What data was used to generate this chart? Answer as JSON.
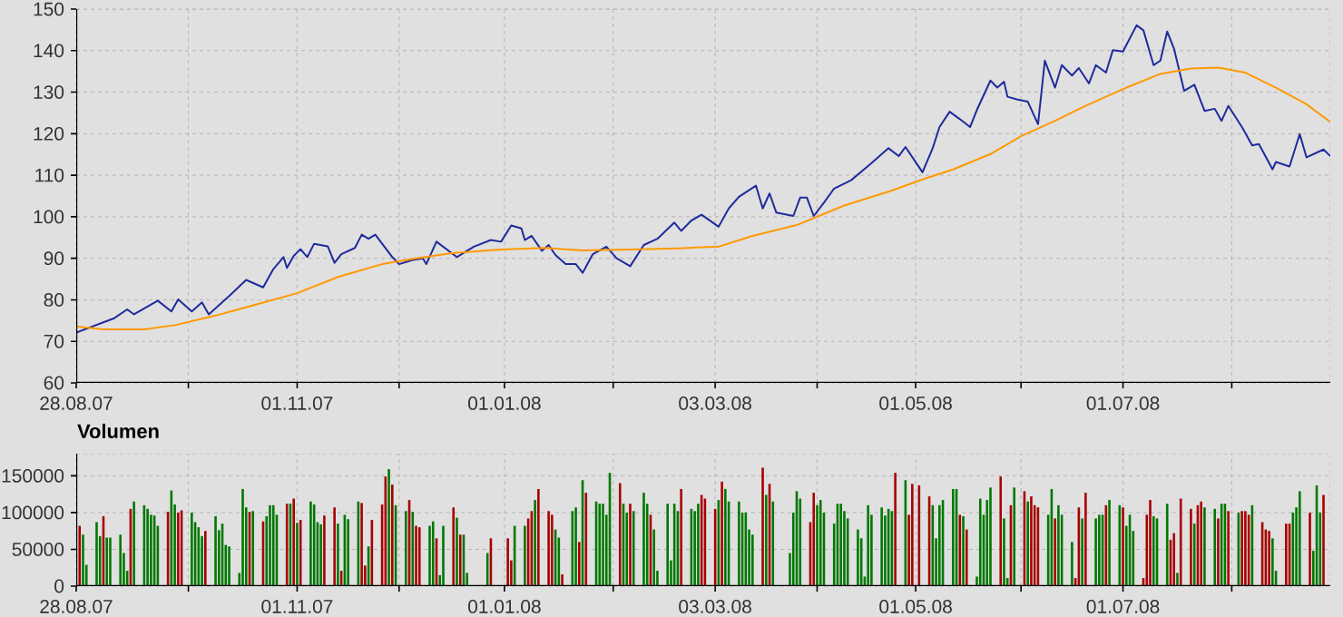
{
  "chart_data": [
    {
      "type": "line",
      "marker": "none",
      "grid": true,
      "line_style": "solid",
      "xlim": [
        "2007-08-28",
        "2008-08-31"
      ],
      "ylim": [
        60,
        150
      ],
      "xticks": [
        {
          "value": "2007-08-28",
          "label": "28.08.07"
        },
        {
          "value": "2007-09-30",
          "label": null
        },
        {
          "value": "2007-11-01",
          "label": "01.11.07"
        },
        {
          "value": "2007-12-01",
          "label": null
        },
        {
          "value": "2008-01-01",
          "label": "01.01.08"
        },
        {
          "value": "2008-02-02",
          "label": null
        },
        {
          "value": "2008-03-03",
          "label": "03.03.08"
        },
        {
          "value": "2008-04-02",
          "label": null
        },
        {
          "value": "2008-05-01",
          "label": "01.05.08"
        },
        {
          "value": "2008-06-01",
          "label": null
        },
        {
          "value": "2008-07-01",
          "label": "01.07.08"
        },
        {
          "value": "2008-08-02",
          "label": null
        }
      ],
      "yticks": [
        60,
        70,
        80,
        90,
        100,
        110,
        120,
        130,
        140,
        150
      ],
      "series": [
        {
          "color": "#1f2b9c",
          "x": [
            "2007-08-28",
            "2007-09-08",
            "2007-09-12",
            "2007-09-14",
            "2007-09-21",
            "2007-09-25",
            "2007-09-27",
            "2007-10-01",
            "2007-10-04",
            "2007-10-06",
            "2007-10-12",
            "2007-10-17",
            "2007-10-22",
            "2007-10-25",
            "2007-10-28",
            "2007-10-29",
            "2007-10-31",
            "2007-11-02",
            "2007-11-04",
            "2007-11-06",
            "2007-11-10",
            "2007-11-12",
            "2007-11-14",
            "2007-11-18",
            "2007-11-20",
            "2007-11-22",
            "2007-11-24",
            "2007-11-29",
            "2007-12-01",
            "2007-12-05",
            "2007-12-08",
            "2007-12-09",
            "2007-12-12",
            "2007-12-18",
            "2007-12-23",
            "2007-12-28",
            "2007-12-31",
            "2008-01-03",
            "2008-01-06",
            "2008-01-07",
            "2008-01-09",
            "2008-01-12",
            "2008-01-14",
            "2008-01-16",
            "2008-01-19",
            "2008-01-22",
            "2008-01-24",
            "2008-01-27",
            "2008-01-31",
            "2008-02-03",
            "2008-02-07",
            "2008-02-11",
            "2008-02-15",
            "2008-02-20",
            "2008-02-22",
            "2008-02-25",
            "2008-02-28",
            "2008-03-04",
            "2008-03-07",
            "2008-03-10",
            "2008-03-15",
            "2008-03-17",
            "2008-03-19",
            "2008-03-21",
            "2008-03-26",
            "2008-03-28",
            "2008-03-30",
            "2008-04-01",
            "2008-04-04",
            "2008-04-07",
            "2008-04-12",
            "2008-04-18",
            "2008-04-23",
            "2008-04-26",
            "2008-04-28",
            "2008-05-03",
            "2008-05-06",
            "2008-05-08",
            "2008-05-11",
            "2008-05-14",
            "2008-05-17",
            "2008-05-19",
            "2008-05-23",
            "2008-05-25",
            "2008-05-27",
            "2008-05-28",
            "2008-05-31",
            "2008-06-03",
            "2008-06-06",
            "2008-06-08",
            "2008-06-11",
            "2008-06-13",
            "2008-06-16",
            "2008-06-18",
            "2008-06-21",
            "2008-06-23",
            "2008-06-26",
            "2008-06-28",
            "2008-07-01",
            "2008-07-05",
            "2008-07-07",
            "2008-07-10",
            "2008-07-12",
            "2008-07-14",
            "2008-07-16",
            "2008-07-19",
            "2008-07-22",
            "2008-07-25",
            "2008-07-28",
            "2008-07-30",
            "2008-08-01",
            "2008-08-05",
            "2008-08-08",
            "2008-08-10",
            "2008-08-14",
            "2008-08-15",
            "2008-08-19",
            "2008-08-22",
            "2008-08-24",
            "2008-08-29",
            "2008-08-31"
          ],
          "values": [
            72.1,
            75.5,
            77.7,
            76.5,
            79.8,
            77.2,
            80.1,
            77.2,
            79.4,
            76.5,
            80.9,
            84.8,
            83.0,
            87.4,
            90.3,
            87.7,
            90.6,
            92.2,
            90.3,
            93.5,
            92.9,
            88.9,
            91.0,
            92.5,
            95.7,
            94.7,
            95.7,
            90.3,
            88.6,
            89.6,
            90.0,
            88.6,
            94.0,
            90.3,
            92.8,
            94.4,
            94.0,
            97.9,
            97.2,
            94.4,
            95.4,
            91.8,
            93.2,
            90.8,
            88.6,
            88.6,
            86.5,
            91.0,
            92.8,
            90.0,
            88.1,
            93.2,
            94.7,
            98.6,
            96.6,
            99.1,
            100.5,
            97.6,
            102.0,
            104.8,
            107.5,
            102.0,
            105.6,
            101.0,
            100.2,
            104.6,
            104.6,
            100.2,
            103.4,
            106.8,
            108.8,
            112.9,
            116.5,
            114.6,
            116.8,
            110.7,
            116.5,
            121.6,
            125.3,
            123.5,
            121.6,
            125.7,
            132.8,
            131.1,
            132.5,
            128.9,
            128.2,
            127.7,
            122.3,
            137.6,
            131.1,
            136.5,
            134.0,
            135.8,
            132.1,
            136.5,
            134.7,
            140.1,
            139.8,
            146.1,
            144.9,
            136.5,
            137.6,
            144.6,
            140.5,
            130.3,
            131.8,
            125.5,
            126.0,
            123.1,
            126.7,
            121.6,
            117.2,
            117.5,
            111.4,
            113.2,
            112.1,
            119.9,
            114.3,
            116.2,
            114.6
          ]
        },
        {
          "color": "#ff9900",
          "x": [
            "2007-08-28",
            "2007-09-05",
            "2007-09-17",
            "2007-09-26",
            "2007-10-08",
            "2007-10-21",
            "2007-11-01",
            "2007-11-13",
            "2007-11-26",
            "2007-12-06",
            "2007-12-17",
            "2007-12-31",
            "2008-01-13",
            "2008-01-24",
            "2008-02-07",
            "2008-02-21",
            "2008-03-04",
            "2008-03-14",
            "2008-03-27",
            "2008-04-10",
            "2008-04-24",
            "2008-05-03",
            "2008-05-12",
            "2008-05-23",
            "2008-06-01",
            "2008-06-11",
            "2008-06-20",
            "2008-07-02",
            "2008-07-12",
            "2008-07-21",
            "2008-07-29",
            "2008-08-06",
            "2008-08-15",
            "2008-08-24",
            "2008-08-31"
          ],
          "values": [
            73.6,
            72.9,
            72.9,
            73.9,
            76.2,
            79.1,
            81.6,
            85.5,
            88.6,
            90.0,
            91.3,
            92.1,
            92.5,
            91.9,
            92.1,
            92.4,
            92.8,
            95.4,
            98.0,
            102.7,
            106.3,
            109.0,
            111.4,
            115.1,
            119.4,
            123.1,
            126.7,
            131.1,
            134.4,
            135.7,
            135.9,
            134.7,
            131.1,
            127.1,
            122.8
          ]
        }
      ]
    },
    {
      "type": "bar",
      "title": "Volumen",
      "grid": true,
      "xlim": [
        "2007-08-28",
        "2008-08-31"
      ],
      "ylim": [
        0,
        180000
      ],
      "xticks": [
        {
          "value": "2007-08-28",
          "label": "28.08.07"
        },
        {
          "value": "2007-09-30",
          "label": null
        },
        {
          "value": "2007-11-01",
          "label": "01.11.07"
        },
        {
          "value": "2007-12-01",
          "label": null
        },
        {
          "value": "2008-01-01",
          "label": "01.01.08"
        },
        {
          "value": "2008-02-02",
          "label": null
        },
        {
          "value": "2008-03-03",
          "label": "03.03.08"
        },
        {
          "value": "2008-04-02",
          "label": null
        },
        {
          "value": "2008-05-01",
          "label": "01.05.08"
        },
        {
          "value": "2008-06-01",
          "label": null
        },
        {
          "value": "2008-07-01",
          "label": "01.07.08"
        },
        {
          "value": "2008-08-02",
          "label": null
        }
      ],
      "yticks": [
        0,
        50000,
        100000,
        150000
      ],
      "x": [
        "2007-08-29",
        "2007-08-30",
        "2007-08-31",
        "2007-09-03",
        "2007-09-04",
        "2007-09-05",
        "2007-09-06",
        "2007-09-07",
        "2007-09-10",
        "2007-09-11",
        "2007-09-12",
        "2007-09-13",
        "2007-09-14",
        "2007-09-17",
        "2007-09-18",
        "2007-09-19",
        "2007-09-20",
        "2007-09-21",
        "2007-09-24",
        "2007-09-25",
        "2007-09-26",
        "2007-09-27",
        "2007-09-28",
        "2007-10-01",
        "2007-10-02",
        "2007-10-03",
        "2007-10-04",
        "2007-10-05",
        "2007-10-08",
        "2007-10-09",
        "2007-10-10",
        "2007-10-11",
        "2007-10-12",
        "2007-10-15",
        "2007-10-16",
        "2007-10-17",
        "2007-10-18",
        "2007-10-19",
        "2007-10-22",
        "2007-10-23",
        "2007-10-24",
        "2007-10-25",
        "2007-10-26",
        "2007-10-29",
        "2007-10-30",
        "2007-10-31",
        "2007-11-01",
        "2007-11-02",
        "2007-11-05",
        "2007-11-06",
        "2007-11-07",
        "2007-11-08",
        "2007-11-09",
        "2007-11-12",
        "2007-11-13",
        "2007-11-14",
        "2007-11-15",
        "2007-11-16",
        "2007-11-19",
        "2007-11-20",
        "2007-11-21",
        "2007-11-22",
        "2007-11-23",
        "2007-11-26",
        "2007-11-27",
        "2007-11-28",
        "2007-11-29",
        "2007-11-30",
        "2007-12-03",
        "2007-12-04",
        "2007-12-05",
        "2007-12-06",
        "2007-12-07",
        "2007-12-10",
        "2007-12-11",
        "2007-12-12",
        "2007-12-13",
        "2007-12-14",
        "2007-12-17",
        "2007-12-18",
        "2007-12-19",
        "2007-12-20",
        "2007-12-21",
        "2007-12-27",
        "2007-12-28",
        "2008-01-02",
        "2008-01-03",
        "2008-01-04",
        "2008-01-07",
        "2008-01-08",
        "2008-01-09",
        "2008-01-10",
        "2008-01-11",
        "2008-01-14",
        "2008-01-15",
        "2008-01-16",
        "2008-01-17",
        "2008-01-18",
        "2008-01-21",
        "2008-01-22",
        "2008-01-23",
        "2008-01-24",
        "2008-01-25",
        "2008-01-28",
        "2008-01-29",
        "2008-01-30",
        "2008-01-31",
        "2008-02-01",
        "2008-02-04",
        "2008-02-05",
        "2008-02-06",
        "2008-02-07",
        "2008-02-08",
        "2008-02-11",
        "2008-02-12",
        "2008-02-13",
        "2008-02-14",
        "2008-02-15",
        "2008-02-18",
        "2008-02-19",
        "2008-02-20",
        "2008-02-21",
        "2008-02-22",
        "2008-02-25",
        "2008-02-26",
        "2008-02-27",
        "2008-02-28",
        "2008-02-29",
        "2008-03-03",
        "2008-03-04",
        "2008-03-05",
        "2008-03-06",
        "2008-03-07",
        "2008-03-10",
        "2008-03-11",
        "2008-03-12",
        "2008-03-13",
        "2008-03-14",
        "2008-03-17",
        "2008-03-18",
        "2008-03-19",
        "2008-03-20",
        "2008-03-25",
        "2008-03-26",
        "2008-03-27",
        "2008-03-28",
        "2008-03-31",
        "2008-04-01",
        "2008-04-02",
        "2008-04-03",
        "2008-04-04",
        "2008-04-07",
        "2008-04-08",
        "2008-04-09",
        "2008-04-10",
        "2008-04-11",
        "2008-04-14",
        "2008-04-15",
        "2008-04-16",
        "2008-04-17",
        "2008-04-18",
        "2008-04-21",
        "2008-04-22",
        "2008-04-23",
        "2008-04-24",
        "2008-04-25",
        "2008-04-28",
        "2008-04-29",
        "2008-04-30",
        "2008-05-02",
        "2008-05-05",
        "2008-05-06",
        "2008-05-07",
        "2008-05-08",
        "2008-05-09",
        "2008-05-12",
        "2008-05-13",
        "2008-05-14",
        "2008-05-15",
        "2008-05-16",
        "2008-05-19",
        "2008-05-20",
        "2008-05-21",
        "2008-05-22",
        "2008-05-23",
        "2008-05-26",
        "2008-05-27",
        "2008-05-28",
        "2008-05-29",
        "2008-05-30",
        "2008-06-02",
        "2008-06-03",
        "2008-06-04",
        "2008-06-05",
        "2008-06-06",
        "2008-06-09",
        "2008-06-10",
        "2008-06-11",
        "2008-06-12",
        "2008-06-13",
        "2008-06-16",
        "2008-06-17",
        "2008-06-18",
        "2008-06-19",
        "2008-06-20",
        "2008-06-23",
        "2008-06-24",
        "2008-06-25",
        "2008-06-26",
        "2008-06-27",
        "2008-06-30",
        "2008-07-01",
        "2008-07-02",
        "2008-07-03",
        "2008-07-04",
        "2008-07-07",
        "2008-07-08",
        "2008-07-09",
        "2008-07-10",
        "2008-07-11",
        "2008-07-14",
        "2008-07-15",
        "2008-07-16",
        "2008-07-17",
        "2008-07-18",
        "2008-07-21",
        "2008-07-22",
        "2008-07-23",
        "2008-07-24",
        "2008-07-25",
        "2008-07-28",
        "2008-07-29",
        "2008-07-30",
        "2008-07-31",
        "2008-08-01",
        "2008-08-04",
        "2008-08-05",
        "2008-08-06",
        "2008-08-07",
        "2008-08-08",
        "2008-08-11",
        "2008-08-12",
        "2008-08-13",
        "2008-08-14",
        "2008-08-15",
        "2008-08-18",
        "2008-08-19",
        "2008-08-20",
        "2008-08-21",
        "2008-08-22",
        "2008-08-25",
        "2008-08-26",
        "2008-08-27",
        "2008-08-28",
        "2008-08-29"
      ],
      "values": [
        82000,
        70000,
        29000,
        87000,
        68000,
        95000,
        66000,
        66000,
        70000,
        45000,
        21000,
        105000,
        115000,
        110000,
        105000,
        97000,
        96000,
        82000,
        101000,
        130000,
        111000,
        100000,
        103000,
        100000,
        87000,
        80000,
        68000,
        75000,
        95000,
        76000,
        85000,
        56000,
        54000,
        18000,
        132000,
        107000,
        101000,
        102000,
        88000,
        95000,
        110000,
        110000,
        97000,
        112000,
        112000,
        119000,
        86000,
        90000,
        115000,
        111000,
        87000,
        84000,
        96000,
        107000,
        85000,
        21000,
        97000,
        91000,
        115000,
        113000,
        28000,
        54000,
        90000,
        111000,
        149000,
        159000,
        138000,
        110000,
        102000,
        117000,
        101000,
        82000,
        80000,
        82000,
        88000,
        65000,
        15000,
        82000,
        107000,
        93000,
        70000,
        70000,
        18000,
        45000,
        65000,
        65000,
        35000,
        82000,
        82000,
        92000,
        102000,
        117000,
        132000,
        102000,
        97000,
        77000,
        66000,
        16000,
        102000,
        107000,
        60000,
        144000,
        127000,
        115000,
        112000,
        112000,
        97000,
        154000,
        140000,
        112000,
        100000,
        112000,
        102000,
        127000,
        112000,
        97000,
        77000,
        21000,
        112000,
        35000,
        112000,
        102000,
        132000,
        105000,
        102000,
        112000,
        124000,
        119000,
        105000,
        117000,
        142000,
        132000,
        115000,
        115000,
        100000,
        100000,
        77000,
        70000,
        161000,
        124000,
        139000,
        115000,
        45000,
        100000,
        129000,
        119000,
        87000,
        127000,
        110000,
        117000,
        100000,
        85000,
        112000,
        112000,
        102000,
        92000,
        77000,
        65000,
        13000,
        110000,
        97000,
        107000,
        96000,
        105000,
        102000,
        154000,
        144000,
        97000,
        139000,
        137000,
        122000,
        110000,
        65000,
        110000,
        117000,
        132000,
        132000,
        97000,
        95000,
        77000,
        13000,
        119000,
        97000,
        117000,
        134000,
        149000,
        92000,
        11000,
        110000,
        134000,
        129000,
        115000,
        122000,
        110000,
        107000,
        97000,
        132000,
        92000,
        110000,
        97000,
        60000,
        11000,
        107000,
        92000,
        127000,
        92000,
        97000,
        97000,
        110000,
        117000,
        110000,
        107000,
        82000,
        97000,
        75000,
        11000,
        97000,
        117000,
        95000,
        92000,
        112000,
        63000,
        72000,
        18000,
        119000,
        105000,
        85000,
        110000,
        115000,
        107000,
        105000,
        92000,
        112000,
        112000,
        102000,
        100000,
        102000,
        102000,
        97000,
        110000,
        87000,
        77000,
        75000,
        65000,
        21000,
        85000,
        85000,
        100000,
        107000,
        129000,
        100000,
        48000,
        137000,
        100000,
        124000
      ],
      "colors": [
        "#a80000",
        "#007800",
        "#007800",
        "#007800",
        "#007800",
        "#a80000",
        "#007800",
        "#007800",
        "#007800",
        "#007800",
        "#007800",
        "#a80000",
        "#007800",
        "#007800",
        "#007800",
        "#007800",
        "#007800",
        "#007800",
        "#a80000",
        "#007800",
        "#007800",
        "#a80000",
        "#a80000",
        "#007800",
        "#007800",
        "#007800",
        "#007800",
        "#a80000",
        "#007800",
        "#007800",
        "#007800",
        "#007800",
        "#007800",
        "#007800",
        "#007800",
        "#007800",
        "#a80000",
        "#007800",
        "#a80000",
        "#007800",
        "#007800",
        "#007800",
        "#007800",
        "#a80000",
        "#007800",
        "#a80000",
        "#007800",
        "#a80000",
        "#007800",
        "#007800",
        "#007800",
        "#007800",
        "#a80000",
        "#a80000",
        "#007800",
        "#a80000",
        "#007800",
        "#007800",
        "#007800",
        "#a80000",
        "#a80000",
        "#007800",
        "#a80000",
        "#a80000",
        "#a80000",
        "#007800",
        "#a80000",
        "#007800",
        "#007800",
        "#a80000",
        "#007800",
        "#a80000",
        "#a80000",
        "#007800",
        "#007800",
        "#a80000",
        "#007800",
        "#007800",
        "#a80000",
        "#007800",
        "#a80000",
        "#007800",
        "#007800",
        "#007800",
        "#a80000",
        "#a80000",
        "#a80000",
        "#007800",
        "#007800",
        "#a80000",
        "#a80000",
        "#007800",
        "#a80000",
        "#a80000",
        "#a80000",
        "#007800",
        "#007800",
        "#a80000",
        "#007800",
        "#007800",
        "#a80000",
        "#007800",
        "#a80000",
        "#007800",
        "#007800",
        "#007800",
        "#007800",
        "#007800",
        "#a80000",
        "#007800",
        "#007800",
        "#a80000",
        "#007800",
        "#007800",
        "#007800",
        "#a80000",
        "#007800",
        "#007800",
        "#007800",
        "#007800",
        "#007800",
        "#007800",
        "#a80000",
        "#007800",
        "#007800",
        "#007800",
        "#a80000",
        "#a80000",
        "#a80000",
        "#007800",
        "#a80000",
        "#007800",
        "#007800",
        "#007800",
        "#007800",
        "#007800",
        "#007800",
        "#007800",
        "#a80000",
        "#007800",
        "#a80000",
        "#007800",
        "#007800",
        "#007800",
        "#007800",
        "#007800",
        "#a80000",
        "#a80000",
        "#007800",
        "#007800",
        "#007800",
        "#007800",
        "#007800",
        "#007800",
        "#007800",
        "#007800",
        "#007800",
        "#007800",
        "#007800",
        "#007800",
        "#007800",
        "#007800",
        "#007800",
        "#007800",
        "#007800",
        "#a80000",
        "#007800",
        "#a80000",
        "#a80000",
        "#a80000",
        "#a80000",
        "#007800",
        "#007800",
        "#007800",
        "#007800",
        "#007800",
        "#007800",
        "#a80000",
        "#007800",
        "#a80000",
        "#007800",
        "#007800",
        "#007800",
        "#007800",
        "#007800",
        "#a80000",
        "#007800",
        "#007800",
        "#a80000",
        "#007800",
        "#a80000",
        "#007800",
        "#a80000",
        "#a80000",
        "#a80000",
        "#007800",
        "#007800",
        "#a80000",
        "#007800",
        "#007800",
        "#007800",
        "#a80000",
        "#a80000",
        "#007800",
        "#a80000",
        "#007800",
        "#007800",
        "#007800",
        "#a80000",
        "#007800",
        "#007800",
        "#a80000",
        "#007800",
        "#007800",
        "#007800",
        "#a80000",
        "#a80000",
        "#a80000",
        "#007800",
        "#007800",
        "#007800",
        "#a80000",
        "#a80000",
        "#007800",
        "#a80000",
        "#a80000",
        "#007800",
        "#a80000",
        "#a80000",
        "#007800",
        "#007800",
        "#a80000",
        "#007800",
        "#007800",
        "#a80000",
        "#007800",
        "#a80000",
        "#a80000",
        "#a80000",
        "#007800",
        "#a80000",
        "#a80000",
        "#a80000",
        "#007800",
        "#007800",
        "#a80000",
        "#a80000",
        "#007800",
        "#007800",
        "#007800",
        "#a80000",
        "#007800",
        "#007800",
        "#007800",
        "#a80000"
      ]
    }
  ]
}
